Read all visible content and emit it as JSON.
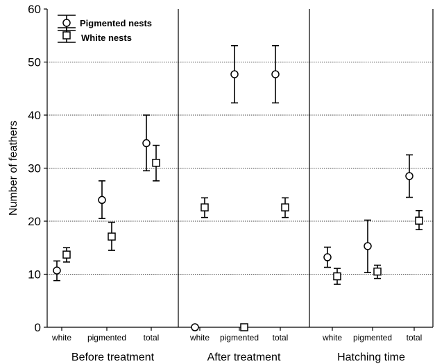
{
  "chart_data": {
    "type": "scatter",
    "ylabel": "Number of feathers",
    "ylim": [
      0,
      60
    ],
    "yticks": [
      0,
      10,
      20,
      30,
      40,
      50,
      60
    ],
    "grid": true,
    "legend_placement": "top-left",
    "categories": [
      "white",
      "pigmented",
      "total"
    ],
    "series": [
      {
        "name": "Pigmented nests",
        "marker": "circle"
      },
      {
        "name": "White nests",
        "marker": "square"
      }
    ],
    "panels": [
      {
        "title": "Before treatment",
        "data": [
          {
            "mean": [
              10.7,
              24.0,
              34.7
            ],
            "lower": [
              8.8,
              20.5,
              29.5
            ],
            "upper": [
              12.5,
              27.6,
              40.0
            ]
          },
          {
            "mean": [
              13.7,
              17.1,
              31.0
            ],
            "lower": [
              12.3,
              14.5,
              27.6
            ],
            "upper": [
              15.0,
              19.8,
              34.3
            ]
          }
        ]
      },
      {
        "title": "After treatment",
        "data": [
          {
            "mean": [
              0,
              47.7,
              47.7
            ],
            "lower": [
              null,
              42.3,
              42.3
            ],
            "upper": [
              null,
              53.1,
              53.1
            ]
          },
          {
            "mean": [
              22.6,
              0,
              22.6
            ],
            "lower": [
              20.7,
              null,
              20.7
            ],
            "upper": [
              24.4,
              null,
              24.4
            ]
          }
        ]
      },
      {
        "title": "Hatching time",
        "data": [
          {
            "mean": [
              13.2,
              15.3,
              28.5
            ],
            "lower": [
              11.3,
              10.3,
              24.5
            ],
            "upper": [
              15.1,
              20.2,
              32.5
            ]
          },
          {
            "mean": [
              9.6,
              10.5,
              20.1
            ],
            "lower": [
              8.1,
              9.2,
              18.4
            ],
            "upper": [
              11.1,
              11.7,
              22.0
            ]
          }
        ]
      }
    ]
  }
}
